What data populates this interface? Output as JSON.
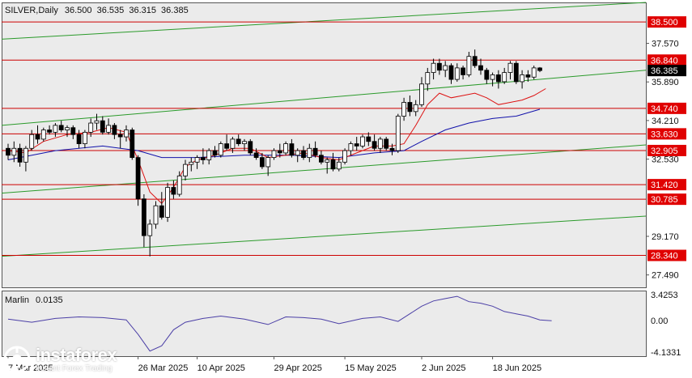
{
  "chart_data": {
    "type": "candlestick",
    "header": {
      "symbol": "SILVER,Daily",
      "open": "36.500",
      "high": "36.535",
      "low": "36.315",
      "close": "36.385"
    },
    "price_axis_labels": [
      "37.570",
      "35.890",
      "34.210",
      "32.530",
      "29.170",
      "27.490"
    ],
    "price_range": [
      26.95,
      39.35
    ],
    "current_price": 36.385,
    "horizontal_levels": [
      {
        "label": "38.500",
        "value": 38.5
      },
      {
        "label": "36.840",
        "value": 36.84
      },
      {
        "label": "34.740",
        "value": 34.74
      },
      {
        "label": "33.630",
        "value": 33.63
      },
      {
        "label": "32.905",
        "value": 32.905
      },
      {
        "label": "31.420",
        "value": 31.42
      },
      {
        "label": "30.785",
        "value": 30.785
      },
      {
        "label": "28.340",
        "value": 28.34
      }
    ],
    "trend_channel": [
      {
        "name": "upper",
        "start": 37.75,
        "end": 39.35
      },
      {
        "name": "middle",
        "start": 34.0,
        "end": 36.4
      },
      {
        "name": "lower",
        "start": 31.05,
        "end": 33.15
      },
      {
        "name": "bottom",
        "start": 28.3,
        "end": 30.05
      }
    ],
    "x_labels": [
      {
        "label": "7 Mar 2025",
        "index": 0
      },
      {
        "label": "26 Mar 2025",
        "index": 22
      },
      {
        "label": "10 Apr 2025",
        "index": 32
      },
      {
        "label": "29 Apr 2025",
        "index": 45
      },
      {
        "label": "15 May 2025",
        "index": 57
      },
      {
        "label": "2 Jun 2025",
        "index": 70
      },
      {
        "label": "18 Jun 2025",
        "index": 82
      }
    ],
    "ohlc": [
      [
        33.0,
        33.2,
        32.5,
        32.7
      ],
      [
        32.7,
        33.3,
        32.4,
        33.0
      ],
      [
        33.0,
        33.2,
        32.2,
        32.4
      ],
      [
        32.4,
        33.1,
        32.0,
        33.0
      ],
      [
        33.0,
        33.8,
        32.9,
        33.6
      ],
      [
        33.6,
        34.0,
        33.2,
        33.4
      ],
      [
        33.4,
        33.9,
        33.3,
        33.8
      ],
      [
        33.8,
        34.0,
        33.6,
        33.7
      ],
      [
        33.7,
        34.1,
        33.5,
        34.0
      ],
      [
        34.0,
        34.2,
        33.7,
        33.8
      ],
      [
        33.8,
        34.0,
        33.5,
        33.9
      ],
      [
        33.9,
        34.0,
        33.4,
        33.6
      ],
      [
        33.6,
        33.8,
        33.0,
        33.2
      ],
      [
        33.2,
        33.8,
        33.0,
        33.7
      ],
      [
        33.7,
        34.3,
        33.5,
        34.1
      ],
      [
        34.1,
        34.5,
        33.8,
        34.2
      ],
      [
        34.2,
        34.4,
        33.6,
        33.7
      ],
      [
        33.7,
        34.3,
        33.6,
        34.0
      ],
      [
        34.0,
        34.1,
        33.4,
        33.6
      ],
      [
        33.6,
        33.8,
        33.0,
        33.5
      ],
      [
        33.5,
        34.0,
        33.3,
        33.8
      ],
      [
        33.8,
        33.9,
        32.5,
        32.6
      ],
      [
        32.6,
        32.7,
        30.5,
        30.8
      ],
      [
        30.8,
        31.0,
        28.7,
        29.2
      ],
      [
        29.2,
        29.9,
        28.3,
        29.7
      ],
      [
        29.7,
        30.7,
        29.5,
        30.5
      ],
      [
        30.5,
        31.1,
        29.9,
        30.0
      ],
      [
        30.0,
        31.5,
        29.8,
        31.3
      ],
      [
        31.3,
        31.6,
        30.8,
        31.0
      ],
      [
        31.0,
        32.0,
        30.9,
        31.8
      ],
      [
        31.8,
        32.5,
        31.6,
        32.3
      ],
      [
        32.3,
        32.6,
        32.0,
        32.4
      ],
      [
        32.4,
        32.7,
        32.1,
        32.6
      ],
      [
        32.6,
        33.0,
        32.3,
        32.5
      ],
      [
        32.5,
        33.0,
        32.3,
        32.9
      ],
      [
        32.9,
        33.1,
        32.6,
        32.7
      ],
      [
        32.7,
        33.3,
        32.6,
        33.2
      ],
      [
        33.2,
        33.6,
        32.9,
        33.0
      ],
      [
        33.0,
        33.5,
        32.8,
        33.4
      ],
      [
        33.4,
        33.6,
        33.1,
        33.2
      ],
      [
        33.2,
        33.4,
        32.9,
        33.3
      ],
      [
        33.3,
        33.4,
        32.7,
        32.8
      ],
      [
        32.8,
        33.0,
        32.5,
        32.6
      ],
      [
        32.6,
        32.8,
        32.1,
        32.2
      ],
      [
        32.2,
        32.7,
        31.8,
        32.6
      ],
      [
        32.6,
        33.0,
        32.5,
        32.9
      ],
      [
        32.9,
        33.2,
        32.6,
        32.8
      ],
      [
        32.8,
        33.3,
        32.7,
        33.2
      ],
      [
        33.2,
        33.4,
        32.6,
        32.7
      ],
      [
        32.7,
        33.0,
        32.4,
        32.9
      ],
      [
        32.9,
        33.1,
        32.5,
        32.6
      ],
      [
        32.6,
        33.2,
        32.4,
        33.0
      ],
      [
        33.0,
        33.3,
        32.6,
        32.7
      ],
      [
        32.7,
        32.9,
        32.3,
        32.4
      ],
      [
        32.4,
        32.6,
        31.9,
        32.5
      ],
      [
        32.5,
        32.8,
        32.0,
        32.1
      ],
      [
        32.1,
        32.6,
        32.0,
        32.4
      ],
      [
        32.4,
        33.0,
        32.3,
        32.9
      ],
      [
        32.9,
        33.3,
        32.7,
        33.2
      ],
      [
        33.2,
        33.5,
        32.9,
        33.1
      ],
      [
        33.1,
        33.6,
        33.0,
        33.5
      ],
      [
        33.5,
        33.7,
        33.1,
        33.3
      ],
      [
        33.3,
        33.6,
        32.9,
        33.0
      ],
      [
        33.0,
        33.5,
        32.8,
        33.4
      ],
      [
        33.4,
        33.5,
        32.9,
        33.0
      ],
      [
        33.0,
        33.2,
        32.7,
        32.9
      ],
      [
        32.9,
        34.5,
        32.8,
        34.4
      ],
      [
        34.4,
        35.2,
        34.2,
        35.0
      ],
      [
        35.0,
        35.3,
        34.4,
        34.6
      ],
      [
        34.6,
        35.1,
        34.4,
        34.9
      ],
      [
        34.9,
        36.1,
        34.8,
        35.8
      ],
      [
        35.8,
        36.5,
        35.5,
        36.3
      ],
      [
        36.3,
        36.9,
        36.0,
        36.7
      ],
      [
        36.7,
        36.9,
        36.2,
        36.4
      ],
      [
        36.4,
        36.8,
        36.1,
        36.6
      ],
      [
        36.6,
        36.7,
        35.8,
        36.0
      ],
      [
        36.0,
        36.7,
        35.9,
        36.5
      ],
      [
        36.5,
        36.6,
        36.0,
        36.2
      ],
      [
        36.2,
        37.2,
        36.1,
        37.0
      ],
      [
        37.0,
        37.3,
        36.5,
        36.6
      ],
      [
        36.6,
        36.9,
        36.2,
        36.4
      ],
      [
        36.4,
        36.5,
        35.8,
        36.0
      ],
      [
        36.0,
        36.3,
        35.7,
        36.2
      ],
      [
        36.2,
        36.4,
        35.6,
        35.9
      ],
      [
        35.9,
        36.5,
        35.8,
        36.3
      ],
      [
        36.3,
        36.8,
        36.0,
        36.7
      ],
      [
        36.7,
        36.8,
        35.8,
        35.9
      ],
      [
        35.9,
        36.4,
        35.6,
        36.2
      ],
      [
        36.2,
        36.4,
        35.9,
        36.1
      ],
      [
        36.1,
        36.6,
        36.0,
        36.5
      ],
      [
        36.5,
        36.535,
        36.315,
        36.385
      ]
    ],
    "ma_fast": [
      [
        0,
        32.9
      ],
      [
        3,
        32.8
      ],
      [
        6,
        33.3
      ],
      [
        10,
        33.6
      ],
      [
        14,
        33.7
      ],
      [
        17,
        33.9
      ],
      [
        20,
        33.7
      ],
      [
        22,
        32.5
      ],
      [
        24,
        31.1
      ],
      [
        26,
        30.6
      ],
      [
        28,
        31.3
      ],
      [
        30,
        32.2
      ],
      [
        32,
        32.5
      ],
      [
        35,
        32.7
      ],
      [
        38,
        33.0
      ],
      [
        41,
        33.0
      ],
      [
        44,
        32.6
      ],
      [
        47,
        32.7
      ],
      [
        50,
        32.8
      ],
      [
        53,
        32.6
      ],
      [
        56,
        32.5
      ],
      [
        59,
        32.8
      ],
      [
        62,
        33.1
      ],
      [
        65,
        33.1
      ],
      [
        67,
        33.2
      ],
      [
        69,
        34.0
      ],
      [
        71,
        34.9
      ],
      [
        73,
        35.4
      ],
      [
        75,
        35.2
      ],
      [
        77,
        35.3
      ],
      [
        79,
        35.4
      ],
      [
        81,
        35.2
      ],
      [
        83,
        34.9
      ],
      [
        85,
        35.0
      ],
      [
        87,
        35.1
      ],
      [
        89,
        35.3
      ],
      [
        91,
        35.6
      ]
    ],
    "ma_slow": [
      [
        0,
        32.5
      ],
      [
        8,
        32.9
      ],
      [
        16,
        33.1
      ],
      [
        22,
        32.9
      ],
      [
        26,
        32.6
      ],
      [
        32,
        32.6
      ],
      [
        40,
        32.7
      ],
      [
        48,
        32.7
      ],
      [
        56,
        32.6
      ],
      [
        62,
        32.8
      ],
      [
        67,
        32.9
      ],
      [
        70,
        33.3
      ],
      [
        74,
        33.8
      ],
      [
        78,
        34.1
      ],
      [
        82,
        34.3
      ],
      [
        86,
        34.4
      ],
      [
        90,
        34.7
      ]
    ],
    "indicator": {
      "name": "Marlin",
      "value": "0.0135",
      "axis_labels": [
        "3.4253",
        "0.00",
        "-4.1331"
      ],
      "range": [
        -4.1331,
        3.4253
      ],
      "values": [
        [
          0,
          0.2
        ],
        [
          4,
          -0.2
        ],
        [
          8,
          0.3
        ],
        [
          12,
          0.5
        ],
        [
          16,
          0.4
        ],
        [
          20,
          0.1
        ],
        [
          22,
          -1.8
        ],
        [
          24,
          -4.0
        ],
        [
          26,
          -3.3
        ],
        [
          28,
          -1.2
        ],
        [
          30,
          -0.2
        ],
        [
          33,
          0.3
        ],
        [
          36,
          0.6
        ],
        [
          40,
          0.2
        ],
        [
          44,
          -0.5
        ],
        [
          47,
          0.5
        ],
        [
          50,
          0.4
        ],
        [
          53,
          0.2
        ],
        [
          56,
          -0.4
        ],
        [
          60,
          0.3
        ],
        [
          63,
          0.5
        ],
        [
          66,
          -0.1
        ],
        [
          68,
          0.9
        ],
        [
          70,
          1.9
        ],
        [
          72,
          2.6
        ],
        [
          74,
          2.9
        ],
        [
          76,
          3.2
        ],
        [
          78,
          2.5
        ],
        [
          80,
          2.3
        ],
        [
          82,
          1.9
        ],
        [
          84,
          1.2
        ],
        [
          86,
          0.9
        ],
        [
          88,
          0.6
        ],
        [
          90,
          0.1
        ],
        [
          92,
          0.0
        ]
      ]
    },
    "colors": {
      "level_line": "#cc0000",
      "level_label_bg": "#e00000",
      "channel_line": "#2a9a2a",
      "ma_fast": "#dd1111",
      "ma_slow": "#1111aa",
      "indicator_line": "#4b3fa6",
      "background": "#ebebeb"
    }
  },
  "watermark": {
    "brand": "instaforex",
    "tagline": "Instant Forex Trading"
  }
}
